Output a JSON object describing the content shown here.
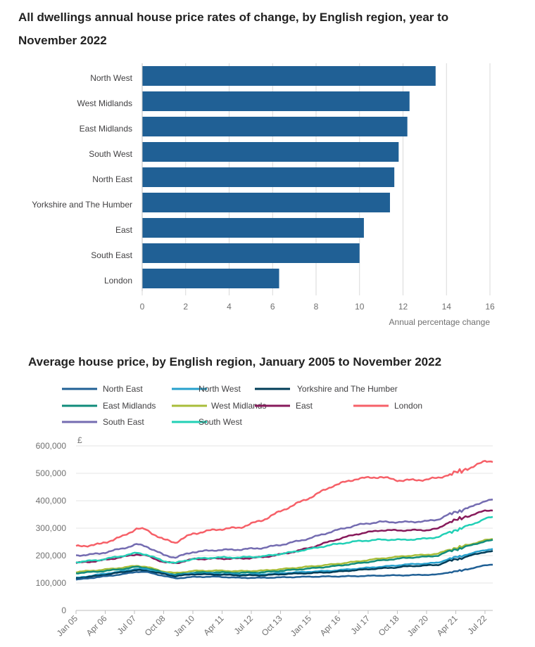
{
  "chart_data": [
    {
      "type": "bar",
      "orientation": "horizontal",
      "title": "All dwellings annual house price rates of change, by English region, year to November 2022",
      "xlabel": "Annual percentage change",
      "ylabel": "",
      "xlim": [
        0,
        16
      ],
      "ticks": [
        0,
        2,
        4,
        6,
        8,
        10,
        12,
        14,
        16
      ],
      "categories": [
        "North West",
        "West Midlands",
        "East Midlands",
        "South West",
        "North East",
        "Yorkshire and The Humber",
        "East",
        "South East",
        "London"
      ],
      "values": [
        13.5,
        12.3,
        12.2,
        11.8,
        11.6,
        11.4,
        10.2,
        10.0,
        6.3
      ],
      "bar_color": "#206095",
      "grid": true
    },
    {
      "type": "line",
      "title": "Average house price, by English region, January 2005 to November 2022",
      "ylabel": "£",
      "ylim": [
        0,
        600000
      ],
      "y_ticks": [
        0,
        100000,
        200000,
        300000,
        400000,
        500000,
        600000
      ],
      "y_tick_labels": [
        "0",
        "100,000",
        "200,000",
        "300,000",
        "400,000",
        "500,000",
        "600,000"
      ],
      "x_range": [
        2005.0,
        2022.833
      ],
      "x_ticks": [
        {
          "label": "Jan 05",
          "value": 2005.0
        },
        {
          "label": "Apr 06",
          "value": 2006.25
        },
        {
          "label": "Jul 07",
          "value": 2007.5
        },
        {
          "label": "Oct 08",
          "value": 2008.75
        },
        {
          "label": "Jan 10",
          "value": 2010.0
        },
        {
          "label": "Apr 11",
          "value": 2011.25
        },
        {
          "label": "Jul 12",
          "value": 2012.5
        },
        {
          "label": "Oct 13",
          "value": 2013.75
        },
        {
          "label": "Jan 15",
          "value": 2015.0
        },
        {
          "label": "Apr 16",
          "value": 2016.25
        },
        {
          "label": "Jul 17",
          "value": 2017.5
        },
        {
          "label": "Oct 18",
          "value": 2018.75
        },
        {
          "label": "Jan 20",
          "value": 2020.0
        },
        {
          "label": "Apr 21",
          "value": 2021.25
        },
        {
          "label": "Jul 22",
          "value": 2022.5
        }
      ],
      "legend_placement": "top",
      "x_anchor_years": [
        2005,
        2006,
        2007,
        2007.6,
        2008,
        2008.75,
        2009.25,
        2010,
        2011,
        2012,
        2013,
        2014,
        2015,
        2016,
        2017,
        2018,
        2018.75,
        2019,
        2020,
        2020.5,
        2021,
        2021.5,
        2022,
        2022.5,
        2022.833
      ],
      "series": [
        {
          "name": "North East",
          "color": "#206095",
          "values": [
            112000,
            122000,
            132000,
            141000,
            140000,
            126000,
            117000,
            122000,
            123000,
            119000,
            119000,
            121000,
            123000,
            124000,
            125000,
            127000,
            128000,
            128000,
            130000,
            131000,
            140000,
            145000,
            155000,
            164000,
            168000
          ]
        },
        {
          "name": "North West",
          "color": "#27a0cc",
          "values": [
            118000,
            131000,
            143000,
            152000,
            150000,
            136000,
            128000,
            135000,
            134000,
            131000,
            132000,
            137000,
            141000,
            145000,
            152000,
            159000,
            164000,
            167000,
            171000,
            174000,
            190000,
            198000,
            210000,
            220000,
            225000
          ]
        },
        {
          "name": "Yorkshire and The Humber",
          "color": "#003c57",
          "values": [
            117000,
            127000,
            140000,
            147000,
            145000,
            133000,
            125000,
            132000,
            131000,
            128000,
            128000,
            133000,
            136000,
            140000,
            147000,
            153000,
            157000,
            160000,
            164000,
            166000,
            182000,
            190000,
            203000,
            213000,
            216000
          ]
        },
        {
          "name": "East Midlands",
          "color": "#118c7b",
          "values": [
            136000,
            142000,
            151000,
            159000,
            155000,
            138000,
            130000,
            138000,
            139000,
            137000,
            139000,
            146000,
            153000,
            161000,
            171000,
            182000,
            188000,
            191000,
            196000,
            200000,
            218000,
            227000,
            240000,
            252000,
            256000
          ]
        },
        {
          "name": "West Midlands",
          "color": "#a8bd3a",
          "values": [
            140000,
            147000,
            156000,
            163000,
            159000,
            142000,
            136000,
            144000,
            145000,
            143000,
            145000,
            152000,
            160000,
            168000,
            178000,
            189000,
            195000,
            198000,
            203000,
            207000,
            223000,
            232000,
            244000,
            256000,
            260000
          ]
        },
        {
          "name": "East",
          "color": "#871a5b",
          "values": [
            173000,
            181000,
            195000,
            205000,
            200000,
            176000,
            172000,
            187000,
            189000,
            189000,
            194000,
            208000,
            228000,
            255000,
            278000,
            292000,
            292000,
            292000,
            293000,
            298000,
            325000,
            335000,
            350000,
            363000,
            366000
          ]
        },
        {
          "name": "London",
          "color": "#f66068",
          "values": [
            233000,
            241000,
            270000,
            299000,
            294000,
            258000,
            248000,
            280000,
            295000,
            302000,
            330000,
            372000,
            411000,
            455000,
            480000,
            487000,
            475000,
            474000,
            477000,
            484000,
            496000,
            510000,
            522000,
            547000,
            543000
          ]
        },
        {
          "name": "South East",
          "color": "#746cb1",
          "values": [
            200000,
            207000,
            226000,
            241000,
            234000,
            202000,
            193000,
            213000,
            220000,
            222000,
            228000,
            243000,
            263000,
            289000,
            311000,
            323000,
            322000,
            322000,
            325000,
            332000,
            352000,
            365000,
            380000,
            400000,
            404000
          ]
        },
        {
          "name": "South West",
          "color": "#22d0b6",
          "values": [
            176000,
            184000,
            199000,
            210000,
            204000,
            180000,
            173000,
            188000,
            193000,
            193000,
            197000,
            209000,
            224000,
            240000,
            252000,
            258000,
            258000,
            257000,
            262000,
            268000,
            286000,
            300000,
            315000,
            335000,
            340000
          ]
        }
      ]
    }
  ]
}
